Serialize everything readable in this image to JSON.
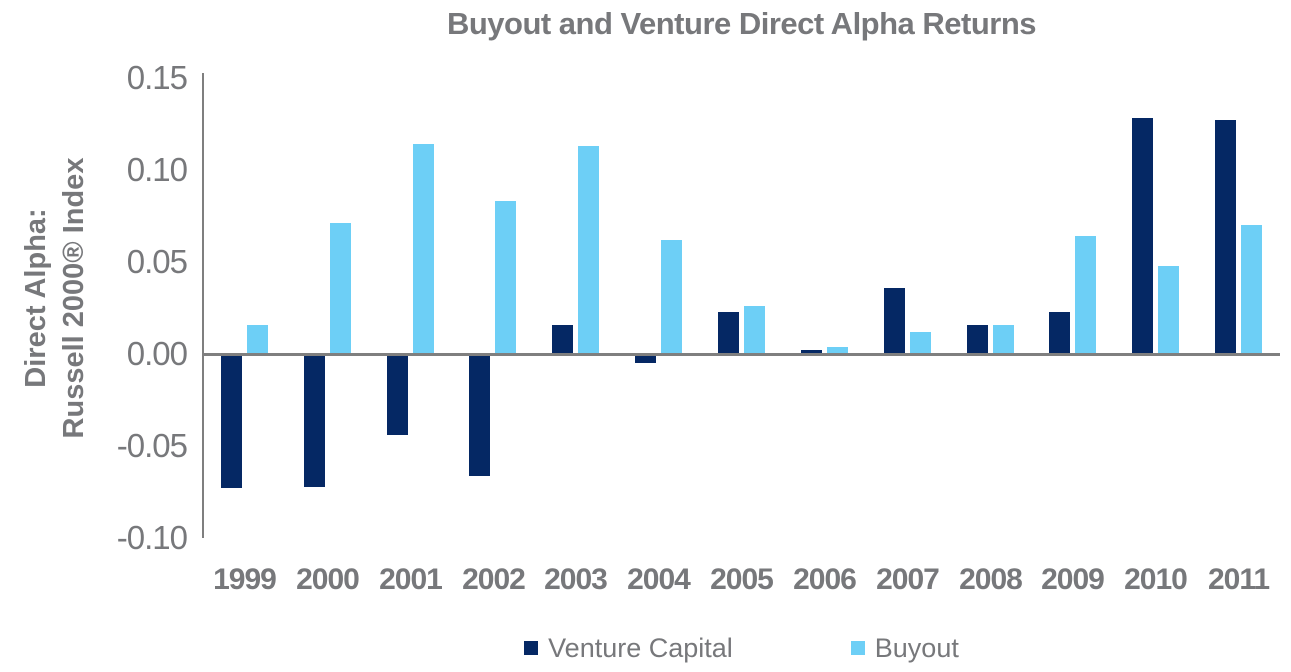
{
  "title": "Buyout and Venture Direct Alpha Returns",
  "y_axis_title": {
    "line1": "Direct Alpha:",
    "line2": "Russell 2000® Index"
  },
  "axis": {
    "y_ticks": [
      "0.15",
      "0.10",
      "0.05",
      "0.00",
      "-0.05",
      "-0.10"
    ]
  },
  "legend": {
    "items": [
      {
        "label": "Venture Capital",
        "color": "#052864"
      },
      {
        "label": "Buyout",
        "color": "#6DCFF6"
      }
    ]
  },
  "colors": {
    "venture_capital": "#052864",
    "buyout": "#6DCFF6",
    "text_gray": "#77787B",
    "axis_gray": "#7F7F7F"
  },
  "chart_data": {
    "type": "bar",
    "title": "Buyout and Venture Direct Alpha Returns",
    "xlabel": "",
    "ylabel": "Direct Alpha: Russell 2000® Index",
    "ylim": [
      -0.1,
      0.15
    ],
    "ytick_step": 0.05,
    "grid": false,
    "legend_position": "bottom",
    "categories": [
      "1999",
      "2000",
      "2001",
      "2002",
      "2003",
      "2004",
      "2005",
      "2006",
      "2007",
      "2008",
      "2009",
      "2010",
      "2011"
    ],
    "series": [
      {
        "name": "Venture Capital",
        "color": "#052864",
        "values": [
          -0.072,
          -0.071,
          -0.043,
          -0.065,
          0.016,
          -0.004,
          0.023,
          0.002,
          0.036,
          0.016,
          0.023,
          0.128,
          0.127
        ]
      },
      {
        "name": "Buyout",
        "color": "#6DCFF6",
        "values": [
          0.016,
          0.071,
          0.114,
          0.083,
          0.113,
          0.062,
          0.026,
          0.004,
          0.012,
          0.016,
          0.064,
          0.048,
          0.07
        ]
      }
    ]
  }
}
